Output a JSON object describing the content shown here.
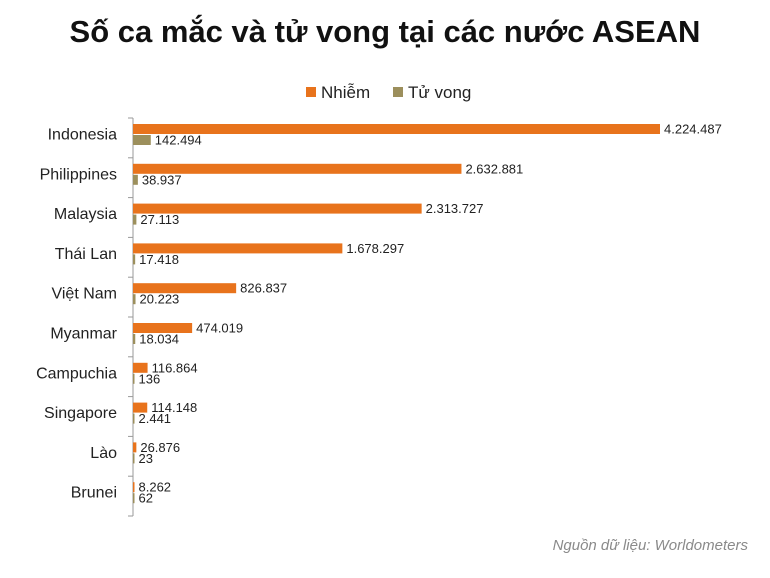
{
  "title": "Số ca mắc và tử vong tại các nước ASEAN",
  "source": "Nguồn dữ liệu: Worldometers",
  "colors": {
    "infected": "#e8731c",
    "deaths": "#9c8f5c",
    "axis": "#999999",
    "text": "#222222"
  },
  "chart_data": {
    "type": "bar",
    "orientation": "horizontal",
    "title": "Số ca mắc và tử vong tại các nước ASEAN",
    "categories": [
      "Indonesia",
      "Philippines",
      "Malaysia",
      "Thái Lan",
      "Việt Nam",
      "Myanmar",
      "Campuchia",
      "Singapore",
      "Lào",
      "Brunei"
    ],
    "series": [
      {
        "name": "Nhiễm",
        "values": [
          4224487,
          2632881,
          2313727,
          1678297,
          826837,
          474019,
          116864,
          114148,
          26876,
          8262
        ],
        "labels": [
          "4.224.487",
          "2.632.881",
          "2.313.727",
          "1.678.297",
          "826.837",
          "474.019",
          "116.864",
          "114.148",
          "26.876",
          "8.262"
        ]
      },
      {
        "name": "Tử vong",
        "values": [
          142494,
          38937,
          27113,
          17418,
          20223,
          18034,
          136,
          2441,
          23,
          62
        ],
        "labels": [
          "142.494",
          "38.937",
          "27.113",
          "17.418",
          "20.223",
          "18.034",
          "136",
          "2.441",
          "23",
          "62"
        ]
      }
    ],
    "xlim": [
      0,
      4224487
    ],
    "legend": "top",
    "grid": false
  }
}
